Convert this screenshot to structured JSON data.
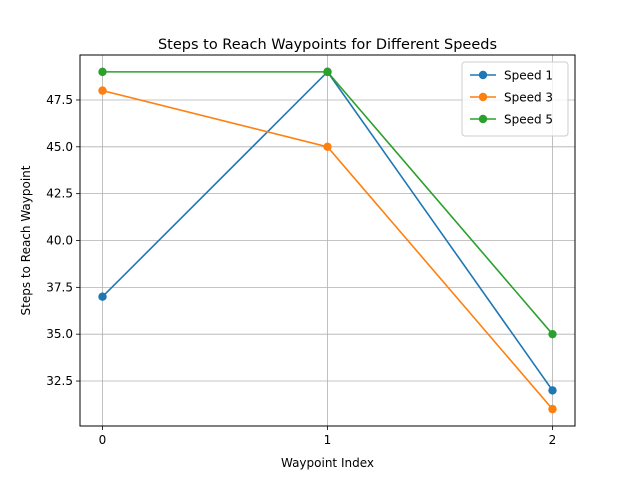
{
  "chart_data": {
    "type": "line",
    "title": "Steps to Reach Waypoints for Different Speeds",
    "xlabel": "Waypoint Index",
    "ylabel": "Steps to Reach Waypoint",
    "x": [
      0,
      1,
      2
    ],
    "x_tick_labels": [
      "0",
      "1",
      "2"
    ],
    "xlim": [
      -0.1,
      2.1
    ],
    "ylim": [
      30.1,
      49.9
    ],
    "y_ticks": [
      32.5,
      35.0,
      37.5,
      40.0,
      42.5,
      45.0,
      47.5
    ],
    "y_tick_labels": [
      "32.5",
      "35.0",
      "37.5",
      "40.0",
      "42.5",
      "45.0",
      "47.5"
    ],
    "grid": true,
    "legend_position": "top-right",
    "series": [
      {
        "name": "Speed 1",
        "color": "#1f77b4",
        "values": [
          37,
          49,
          32
        ]
      },
      {
        "name": "Speed 3",
        "color": "#ff7f0e",
        "values": [
          48,
          45,
          31
        ]
      },
      {
        "name": "Speed 5",
        "color": "#2ca02c",
        "values": [
          49,
          49,
          35
        ]
      }
    ]
  }
}
